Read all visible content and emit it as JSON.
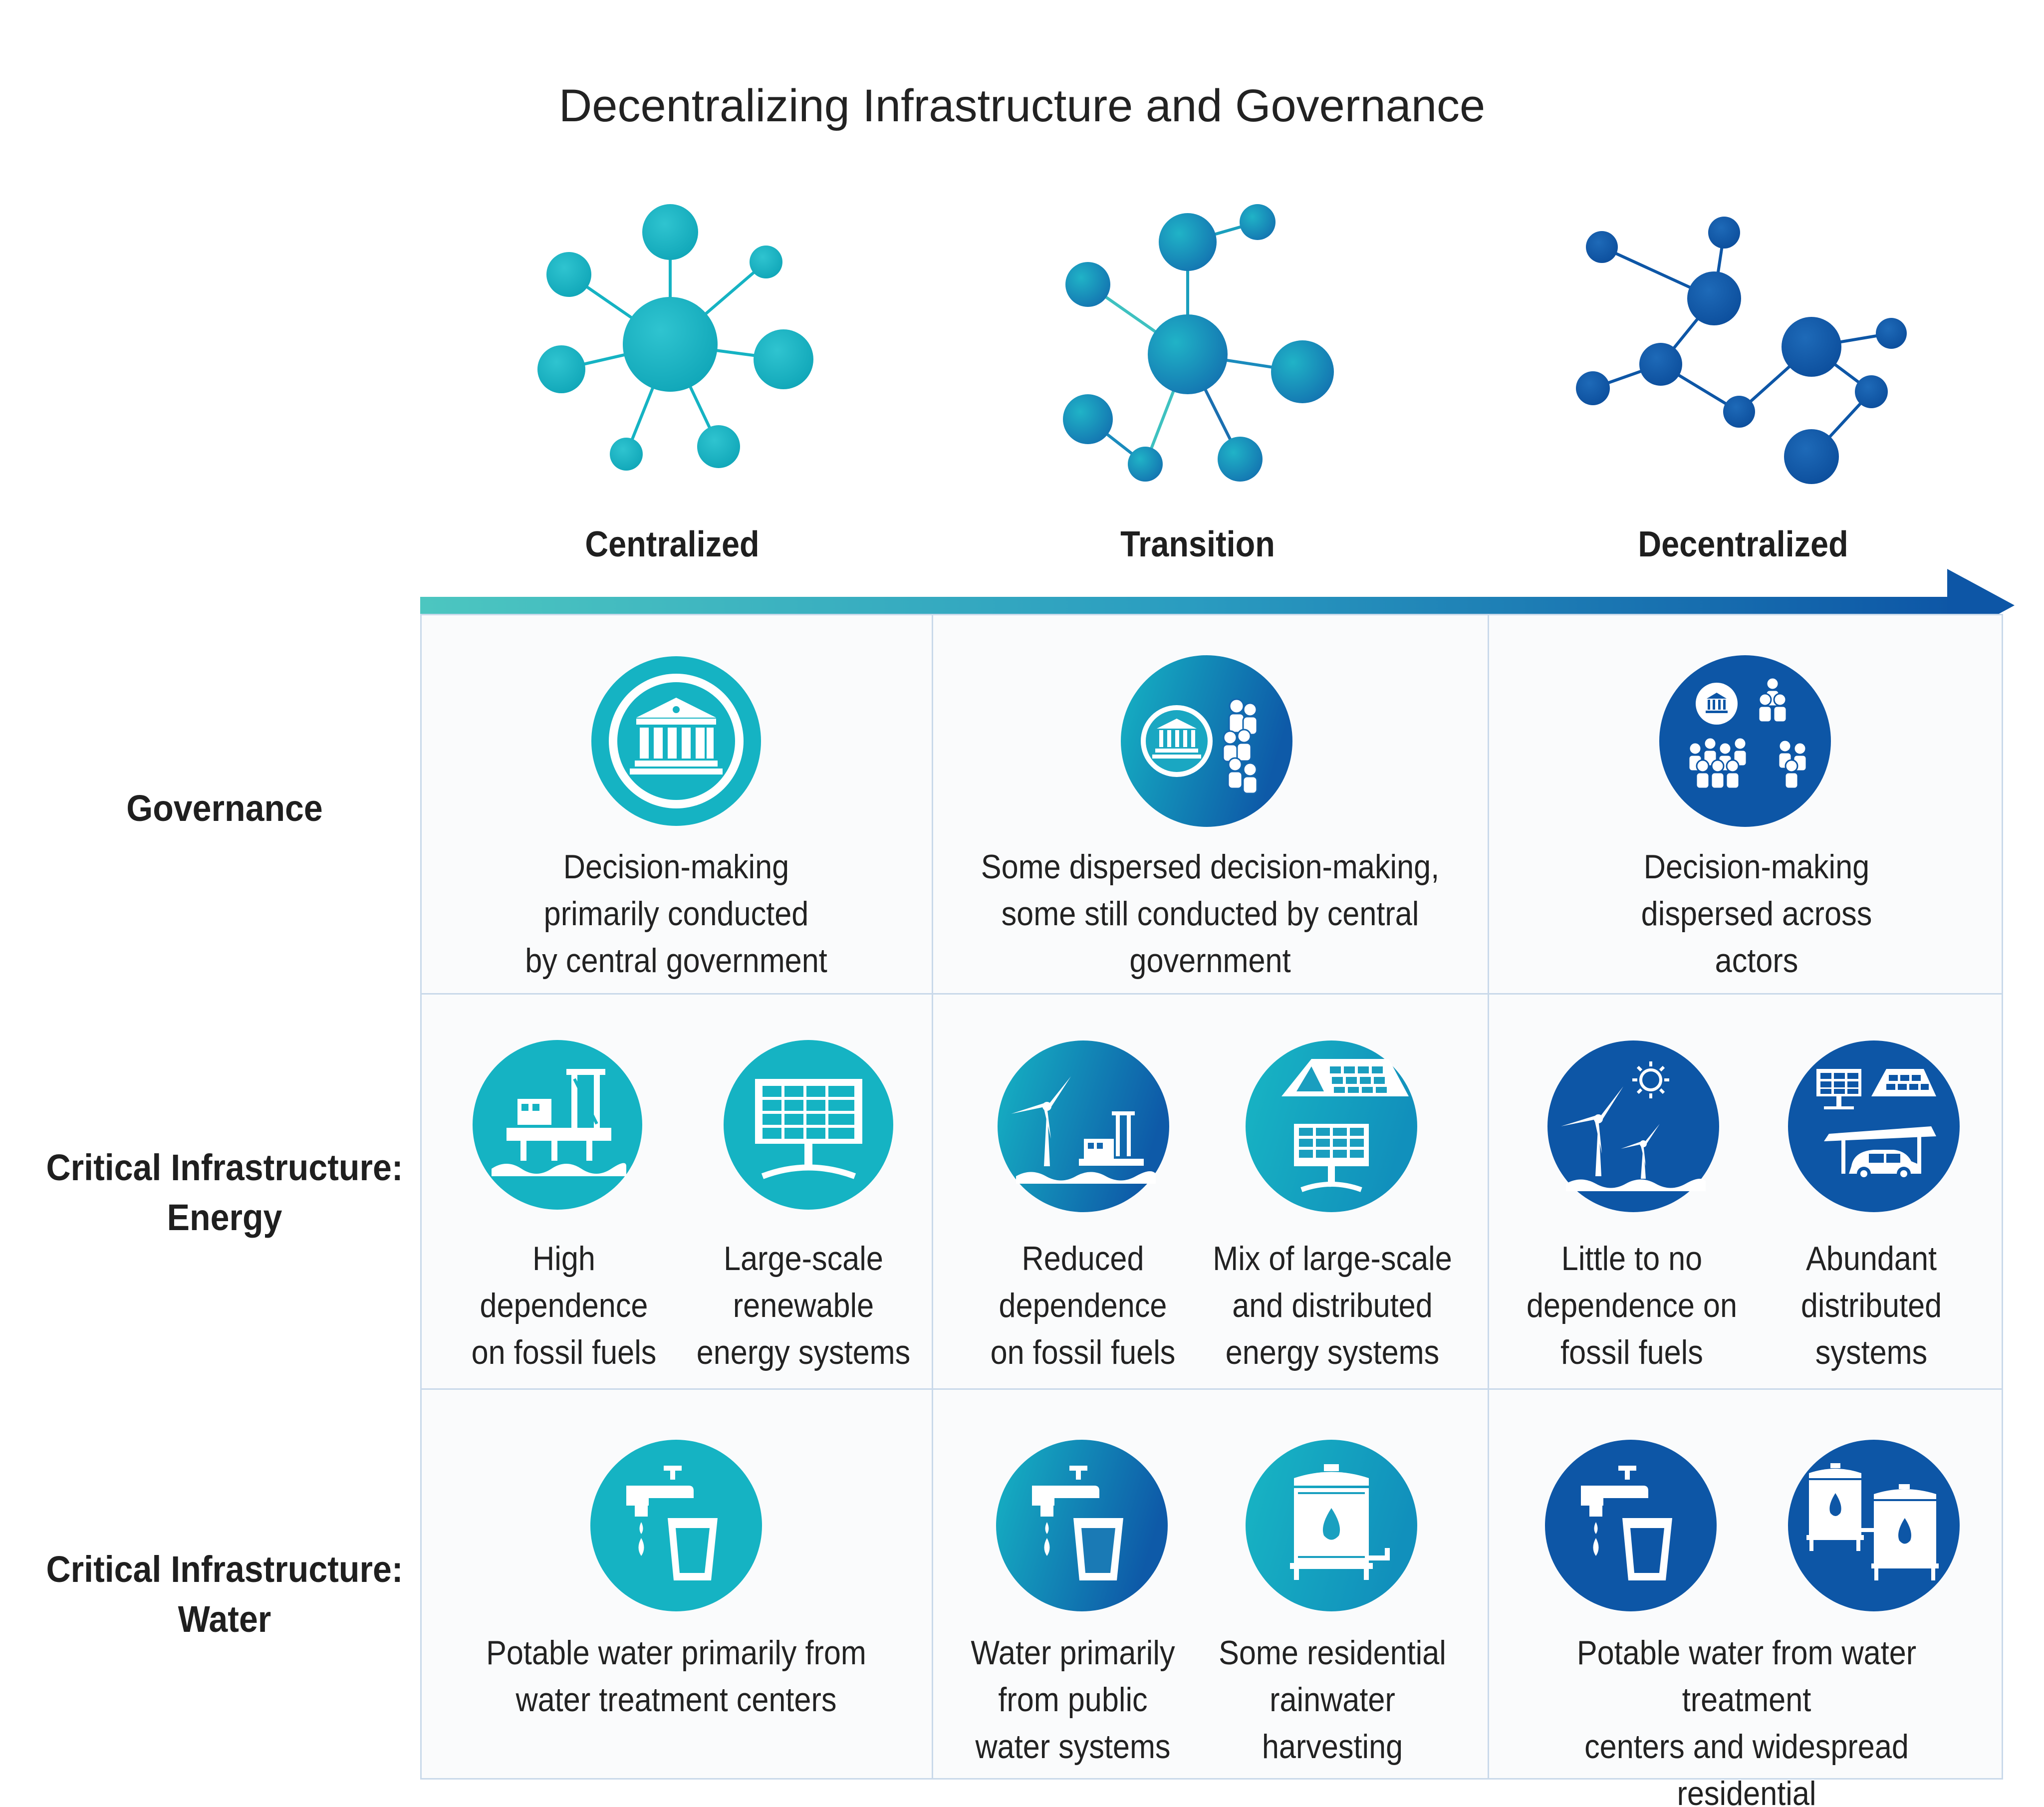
{
  "title": "Decentralizing Infrastructure and Governance",
  "stages": [
    "Centralized",
    "Transition",
    "Decentralized"
  ],
  "rows": {
    "governance": "Governance",
    "energy": "Critical Infrastructure:\nEnergy",
    "water": "Critical Infrastructure:\nWater"
  },
  "cells": {
    "governance": {
      "centralized": "Decision-making\nprimarily conducted\nby central government",
      "transition": "Some dispersed decision-making,\nsome still conducted by central\ngovernment",
      "decentralized": "Decision-making\ndispersed across\nactors"
    },
    "energy": {
      "centralized_fossil": "High dependence\non fossil fuels",
      "centralized_renewable": "Large-scale\nrenewable\nenergy systems",
      "transition_fossil": "Reduced\ndependence\non fossil fuels",
      "transition_mix": "Mix of large-scale\nand distributed\nenergy systems",
      "decentralized_fossil": "Little to no\ndependence on\nfossil fuels",
      "decentralized_distributed": "Abundant\ndistributed\nsystems"
    },
    "water": {
      "centralized": "Potable water primarily from\nwater treatment centers",
      "transition_public": "Water primarily\nfrom public\nwater systems",
      "transition_rainwater": "Some residential\nrainwater\nharvesting",
      "decentralized": "Potable water from water treatment\ncenters and widespread residential\nrainwater harvesting"
    }
  },
  "icons": {
    "network_centralized": "hub-network-icon",
    "network_transition": "partial-network-icon",
    "network_decentralized": "mesh-network-icon",
    "gov_centralized": "government-building-icon",
    "gov_transition": "building-and-people-icon",
    "gov_decentralized": "many-actors-icon",
    "energy_c1": "offshore-oil-rig-icon",
    "energy_c2": "solar-panel-icon",
    "energy_t1": "wind-turbine-and-rig-icon",
    "energy_t2": "rooftop-solar-icon",
    "energy_d1": "wind-turbines-sun-icon",
    "energy_d2": "distributed-solar-carport-icon",
    "water_c": "tap-and-glass-icon",
    "water_t1": "tap-and-glass-icon",
    "water_t2": "rainwater-tank-icon",
    "water_d1": "tap-and-glass-icon",
    "water_d2": "rainwater-tanks-icon"
  },
  "colors": {
    "teal": "#15b3c3",
    "mid": "#1a89b7",
    "blue": "#0d56a6",
    "grid_line": "#c9d9ea"
  }
}
